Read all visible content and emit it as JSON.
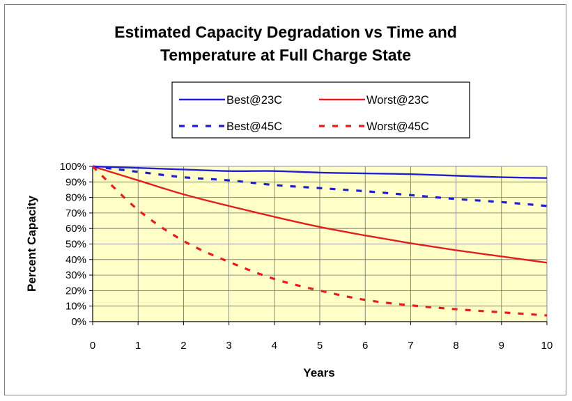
{
  "chart_data": {
    "type": "line",
    "title_lines": [
      "Estimated Capacity Degradation vs Time and",
      "Temperature at Full Charge State"
    ],
    "xlabel": "Years",
    "ylabel": "Percent Capacity",
    "xlim": [
      0,
      10
    ],
    "ylim": [
      0,
      100
    ],
    "x_ticks": [
      "0",
      "1",
      "2",
      "3",
      "4",
      "5",
      "6",
      "7",
      "8",
      "9",
      "10"
    ],
    "y_ticks": [
      "0%",
      "10%",
      "20%",
      "30%",
      "40%",
      "50%",
      "60%",
      "70%",
      "80%",
      "90%",
      "100%"
    ],
    "grid": true,
    "plot_background": "#ffffc8",
    "legend_position": "top-center",
    "x": [
      0,
      1,
      2,
      3,
      4,
      5,
      6,
      7,
      8,
      9,
      10
    ],
    "series": [
      {
        "name": "Best@23C",
        "color": "#1f1fd1",
        "style": "solid",
        "values": [
          100,
          99,
          98,
          97,
          97,
          96,
          95.5,
          95,
          94,
          93,
          92.5
        ]
      },
      {
        "name": "Worst@23C",
        "color": "#e31e1e",
        "style": "solid",
        "values": [
          100,
          91,
          82,
          74.5,
          67.5,
          61,
          55.5,
          50.5,
          46,
          42,
          38
        ]
      },
      {
        "name": "Best@45C",
        "color": "#1f1fd1",
        "style": "dashed",
        "values": [
          100,
          96.5,
          93,
          91,
          88,
          86,
          84,
          81.5,
          79,
          77,
          74.5
        ]
      },
      {
        "name": "Worst@45C",
        "color": "#e31e1e",
        "style": "dashed",
        "values": [
          100,
          72,
          52,
          38.5,
          27.5,
          20,
          14,
          10.5,
          8,
          6,
          4
        ]
      }
    ]
  }
}
